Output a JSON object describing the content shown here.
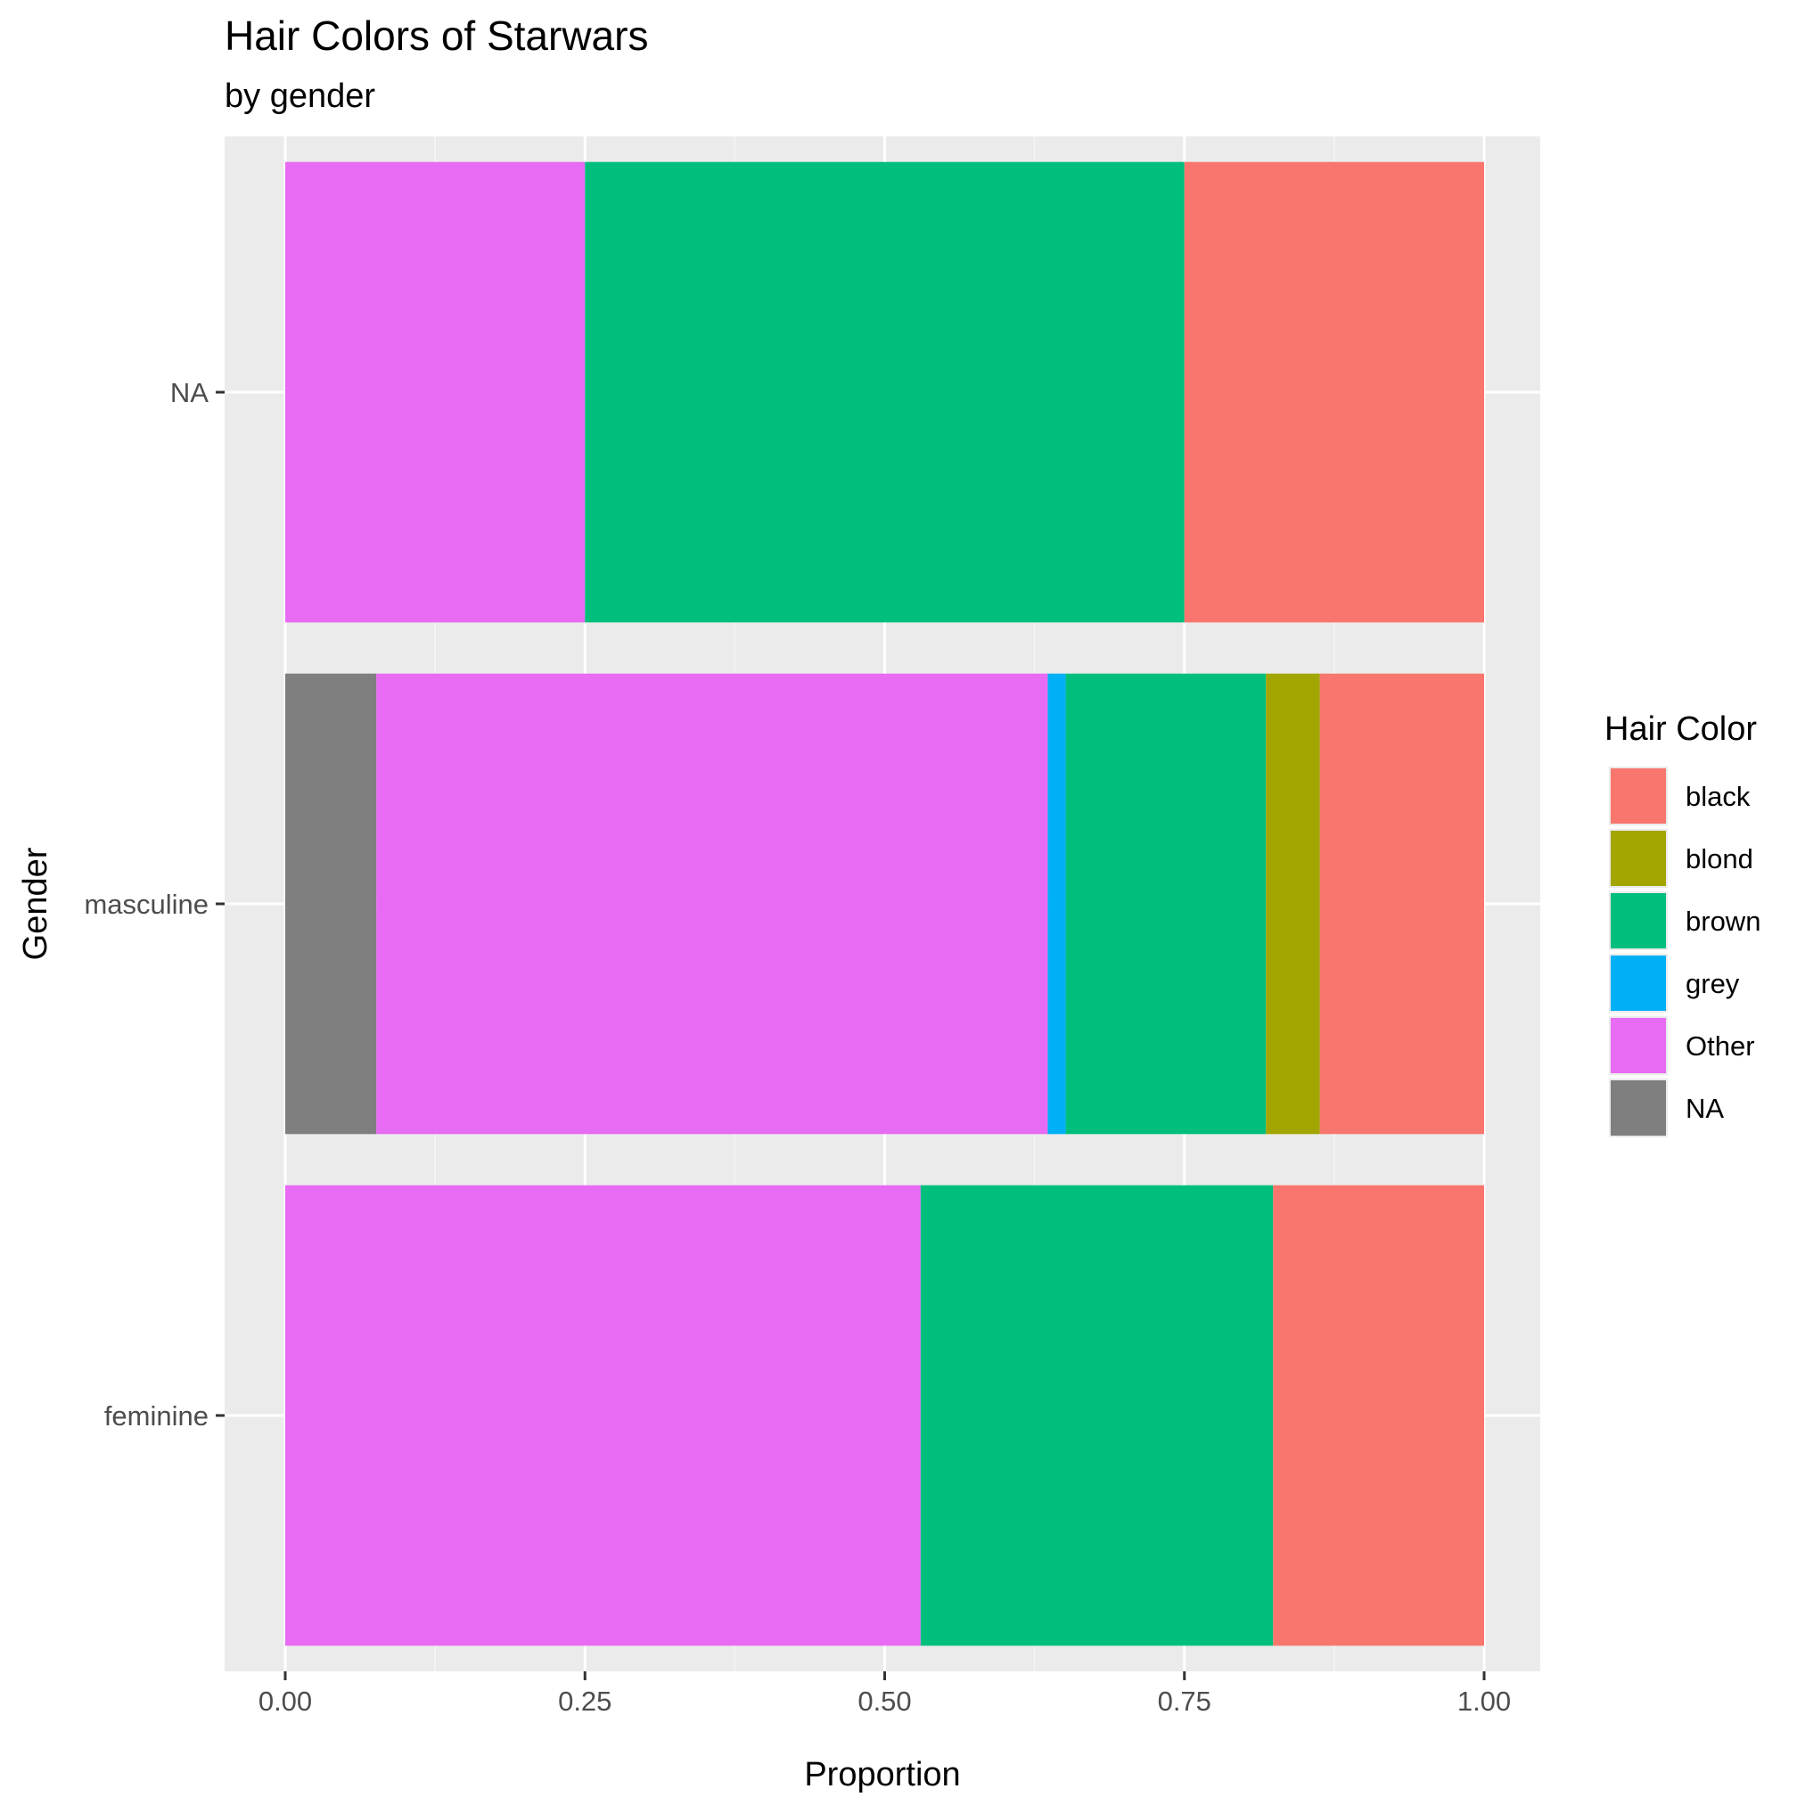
{
  "chart_data": {
    "type": "bar",
    "orientation": "horizontal",
    "stacked": "fill",
    "title": "Hair Colors of Starwars",
    "subtitle": "by gender",
    "xlabel": "Proportion",
    "ylabel": "Gender",
    "xlim": [
      0,
      1
    ],
    "x_ticks": [
      "0.00",
      "0.25",
      "0.50",
      "0.75",
      "1.00"
    ],
    "x_tick_values": [
      0,
      0.25,
      0.5,
      0.75,
      1.0
    ],
    "categories": [
      "feminine",
      "masculine",
      "NA"
    ],
    "grid": true,
    "legend": {
      "title": "Hair Color",
      "position": "right",
      "entries": [
        {
          "label": "black",
          "color": "#F8766D"
        },
        {
          "label": "blond",
          "color": "#A3A500"
        },
        {
          "label": "brown",
          "color": "#00BF7D"
        },
        {
          "label": "grey",
          "color": "#00B0F6"
        },
        {
          "label": "Other",
          "color": "#E76BF3"
        },
        {
          "label": "NA",
          "color": "#7F7F7F"
        }
      ]
    },
    "stack_order": [
      "NA",
      "Other",
      "grey",
      "brown",
      "blond",
      "black"
    ],
    "series": [
      {
        "name": "black",
        "color": "#F8766D",
        "values": [
          0.176,
          0.137,
          0.25
        ]
      },
      {
        "name": "blond",
        "color": "#A3A500",
        "values": [
          0,
          0.045,
          0
        ]
      },
      {
        "name": "brown",
        "color": "#00BF7D",
        "values": [
          0.294,
          0.167,
          0.5
        ]
      },
      {
        "name": "grey",
        "color": "#00B0F6",
        "values": [
          0,
          0.015,
          0
        ]
      },
      {
        "name": "Other",
        "color": "#E76BF3",
        "values": [
          0.53,
          0.56,
          0.25
        ]
      },
      {
        "name": "NA",
        "color": "#7F7F7F",
        "values": [
          0,
          0.076,
          0
        ]
      }
    ]
  },
  "colors": {
    "panel_background": "#EBEBEB",
    "grid_major": "#FFFFFF",
    "grid_minor": "#F5F5F5"
  }
}
